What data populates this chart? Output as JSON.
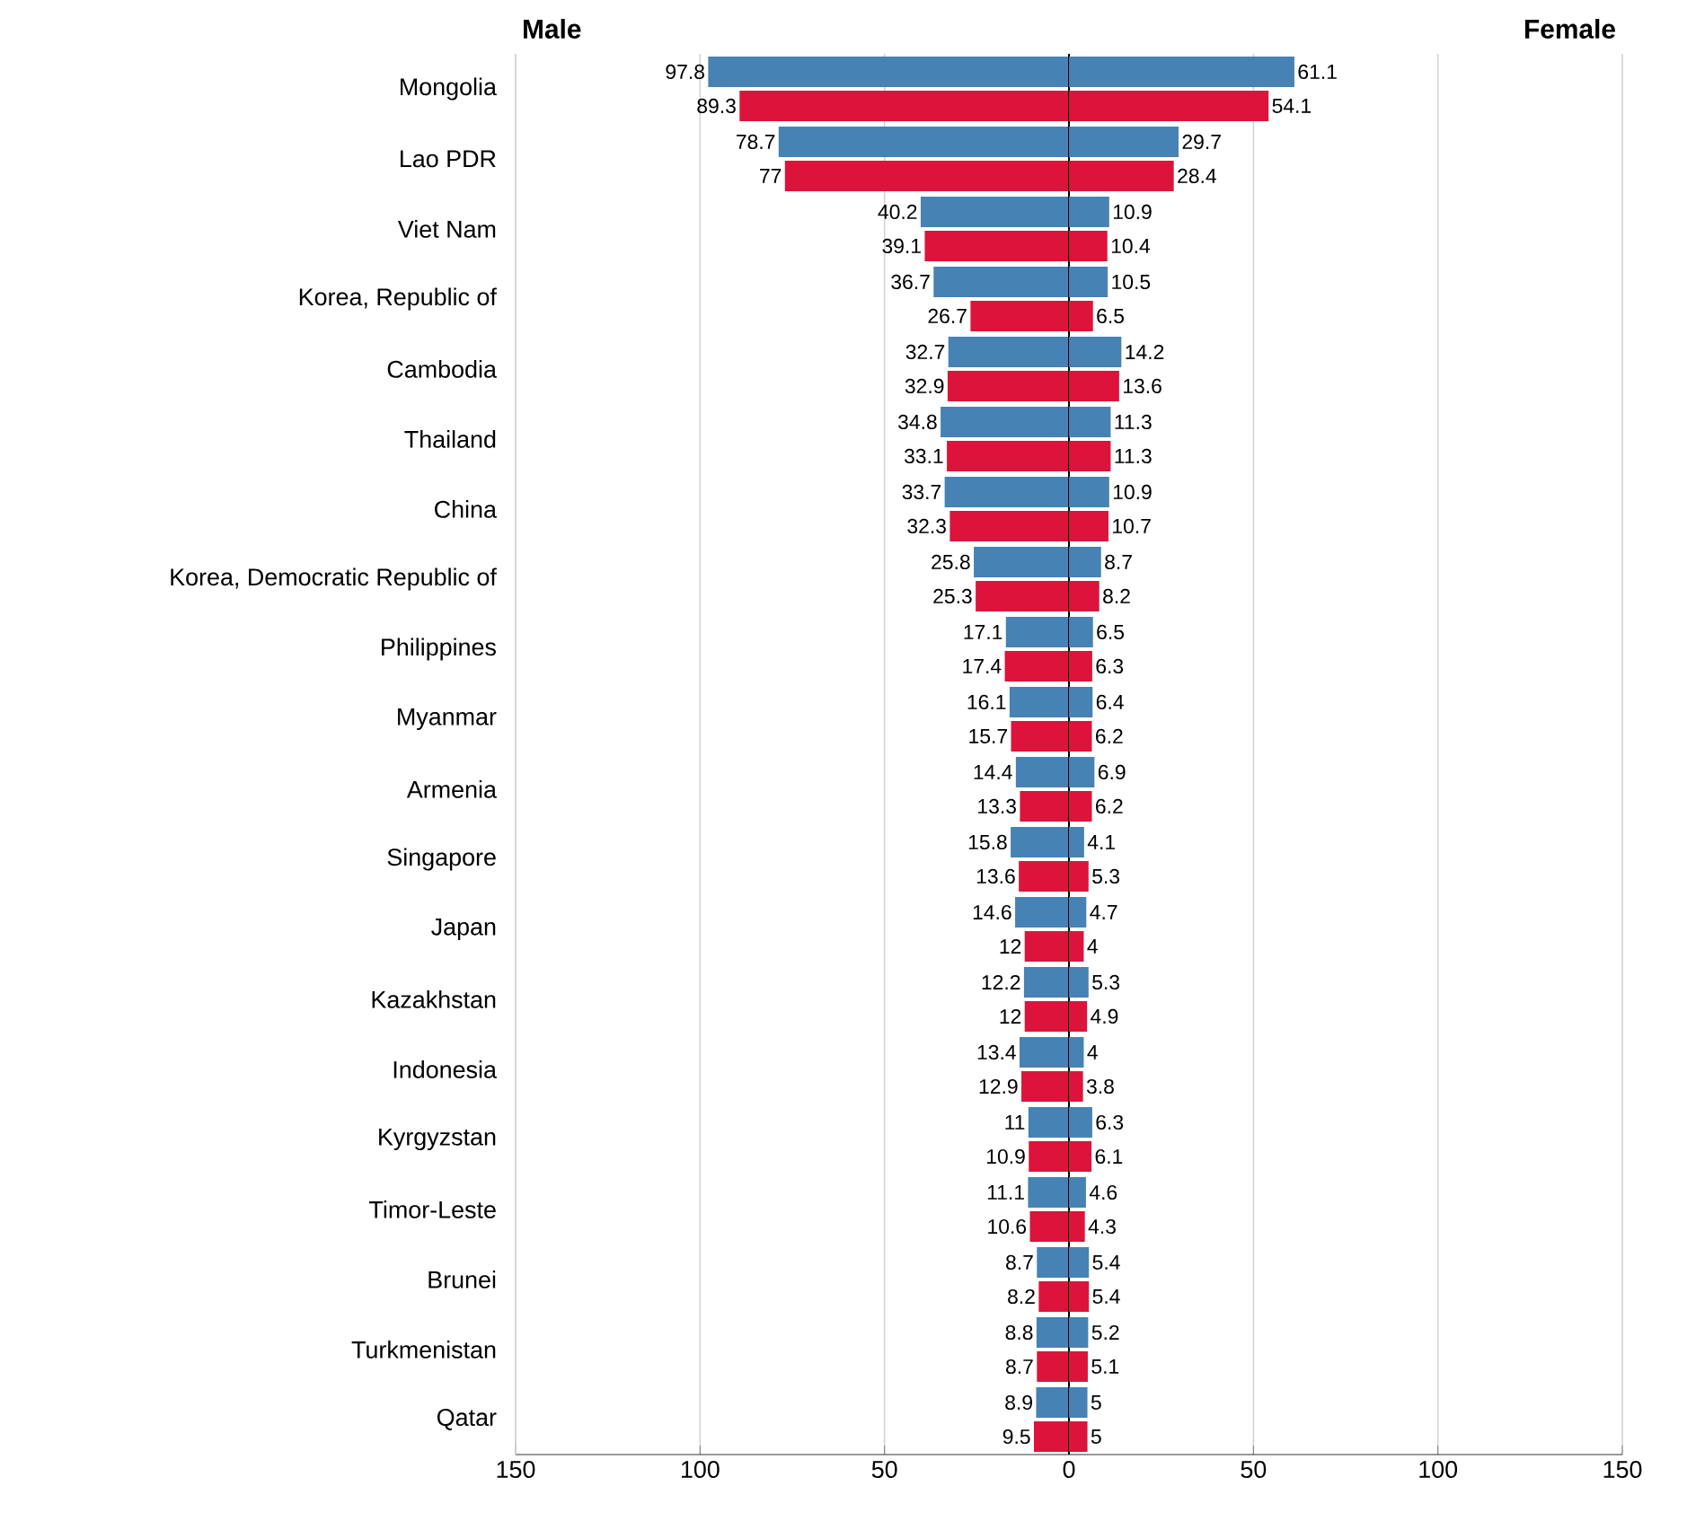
{
  "chart_data": [
    {
      "type": "bar",
      "orientation": "horizontal",
      "title": "Male",
      "categories": [
        "Mongolia",
        "Lao PDR",
        "Viet Nam",
        "Korea, Republic of",
        "Cambodia",
        "Thailand",
        "China",
        "Korea, Democratic Republic of",
        "Philippines",
        "Myanmar",
        "Armenia",
        "Singapore",
        "Japan",
        "Kazakhstan",
        "Indonesia",
        "Kyrgyzstan",
        "Timor-Leste",
        "Brunei",
        "Turkmenistan",
        "Qatar"
      ],
      "series": [
        {
          "color": "#4682b4",
          "values": [
            97.8,
            78.7,
            40.2,
            36.7,
            32.7,
            34.8,
            33.7,
            25.8,
            17.1,
            16.1,
            14.4,
            15.8,
            14.6,
            12.2,
            13.4,
            11,
            11.1,
            8.7,
            8.8,
            8.9
          ]
        },
        {
          "color": "#dc143c",
          "values": [
            89.3,
            77,
            39.1,
            26.7,
            32.9,
            33.1,
            32.3,
            25.3,
            17.4,
            15.7,
            13.3,
            13.6,
            12,
            12,
            12.9,
            10.9,
            10.6,
            8.2,
            8.7,
            9.5
          ]
        }
      ],
      "xlim": [
        150,
        0
      ],
      "xticks": [
        150,
        100,
        50
      ],
      "grid": "x",
      "data_labels": true
    },
    {
      "type": "bar",
      "orientation": "horizontal",
      "title": "Female",
      "categories": [
        null,
        null,
        null,
        null,
        null,
        null,
        null,
        null,
        null,
        null,
        null,
        null,
        null,
        null,
        null,
        null,
        null,
        null,
        null,
        null
      ],
      "series": [
        {
          "color": "#4682b4",
          "values": [
            61.1,
            29.7,
            10.9,
            10.5,
            14.2,
            11.3,
            10.9,
            8.7,
            6.5,
            6.4,
            6.9,
            4.1,
            4.7,
            5.3,
            4,
            6.3,
            4.6,
            5.4,
            5.2,
            5
          ]
        },
        {
          "color": "#dc143c",
          "values": [
            54.1,
            28.4,
            10.4,
            6.5,
            13.6,
            11.3,
            10.7,
            8.2,
            6.3,
            6.2,
            6.2,
            5.3,
            4,
            4.9,
            3.8,
            6.1,
            4.3,
            5.4,
            5.1,
            5
          ]
        }
      ],
      "xlim": [
        0,
        150
      ],
      "xticks": [
        0,
        50,
        100,
        150
      ],
      "grid": "x",
      "data_labels": true,
      "tick_labels": "x"
    }
  ]
}
